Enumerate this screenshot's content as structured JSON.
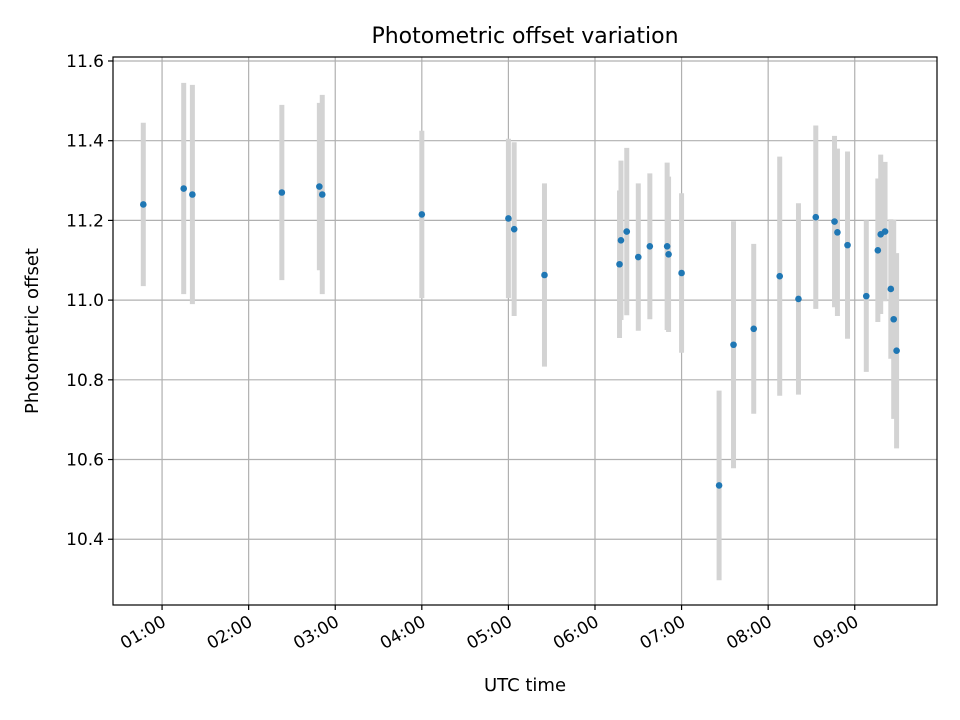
{
  "chart_data": {
    "type": "scatter",
    "title": "Photometric offset variation",
    "xlabel": "UTC time",
    "ylabel": "Photometric offset",
    "xlim": [
      "00:26",
      "09:57"
    ],
    "ylim": [
      10.235,
      11.61
    ],
    "x_ticks": [
      "01:00",
      "02:00",
      "03:00",
      "04:00",
      "05:00",
      "06:00",
      "07:00",
      "08:00",
      "09:00"
    ],
    "y_ticks": [
      "10.4",
      "10.6",
      "10.8",
      "11.0",
      "11.2",
      "11.4",
      "11.6"
    ],
    "grid": true,
    "errorbar_color": "#d3d3d3",
    "marker_color": "#1f77b4",
    "points": [
      {
        "t": "00:47",
        "y": 11.24,
        "err": 0.205
      },
      {
        "t": "01:15",
        "y": 11.28,
        "err": 0.265
      },
      {
        "t": "01:21",
        "y": 11.265,
        "err": 0.275
      },
      {
        "t": "02:23",
        "y": 11.27,
        "err": 0.22
      },
      {
        "t": "02:49",
        "y": 11.285,
        "err": 0.21
      },
      {
        "t": "02:51",
        "y": 11.265,
        "err": 0.25
      },
      {
        "t": "04:00",
        "y": 11.215,
        "err": 0.21
      },
      {
        "t": "05:00",
        "y": 11.205,
        "err": 0.2
      },
      {
        "t": "05:04",
        "y": 11.178,
        "err": 0.218
      },
      {
        "t": "05:25",
        "y": 11.063,
        "err": 0.23
      },
      {
        "t": "06:17",
        "y": 11.09,
        "err": 0.185
      },
      {
        "t": "06:18",
        "y": 11.15,
        "err": 0.2
      },
      {
        "t": "06:22",
        "y": 11.172,
        "err": 0.21
      },
      {
        "t": "06:30",
        "y": 11.108,
        "err": 0.185
      },
      {
        "t": "06:38",
        "y": 11.135,
        "err": 0.183
      },
      {
        "t": "06:50",
        "y": 11.135,
        "err": 0.21
      },
      {
        "t": "06:51",
        "y": 11.115,
        "err": 0.195
      },
      {
        "t": "07:00",
        "y": 11.068,
        "err": 0.2
      },
      {
        "t": "07:26",
        "y": 10.535,
        "err": 0.238
      },
      {
        "t": "07:36",
        "y": 10.888,
        "err": 0.31
      },
      {
        "t": "07:50",
        "y": 10.928,
        "err": 0.213
      },
      {
        "t": "08:08",
        "y": 11.06,
        "err": 0.3
      },
      {
        "t": "08:21",
        "y": 11.003,
        "err": 0.24
      },
      {
        "t": "08:33",
        "y": 11.208,
        "err": 0.23
      },
      {
        "t": "08:46",
        "y": 11.197,
        "err": 0.215
      },
      {
        "t": "08:48",
        "y": 11.17,
        "err": 0.21
      },
      {
        "t": "08:55",
        "y": 11.138,
        "err": 0.235
      },
      {
        "t": "09:08",
        "y": 11.01,
        "err": 0.19
      },
      {
        "t": "09:16",
        "y": 11.125,
        "err": 0.18
      },
      {
        "t": "09:18",
        "y": 11.165,
        "err": 0.2
      },
      {
        "t": "09:21",
        "y": 11.172,
        "err": 0.175
      },
      {
        "t": "09:25",
        "y": 11.028,
        "err": 0.175
      },
      {
        "t": "09:27",
        "y": 10.952,
        "err": 0.25
      },
      {
        "t": "09:29",
        "y": 10.873,
        "err": 0.245
      }
    ]
  }
}
